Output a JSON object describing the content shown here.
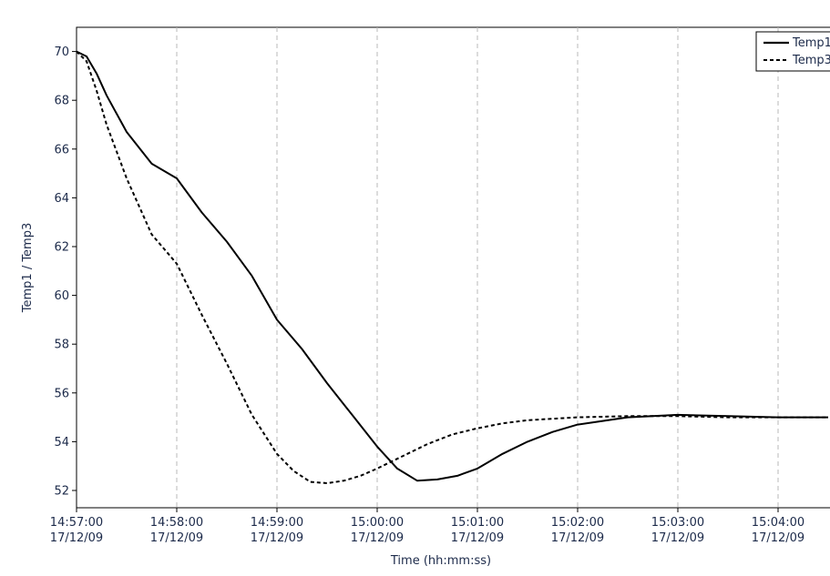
{
  "chart_data": {
    "type": "line",
    "xlabel": "Time (hh:mm:ss)",
    "ylabel": "Temp1 / Temp3",
    "ylim": [
      51.5,
      71
    ],
    "xlim_minutes": [
      0,
      7.5
    ],
    "y_ticks": [
      52,
      54,
      56,
      58,
      60,
      62,
      64,
      66,
      68,
      70
    ],
    "x_ticks": [
      {
        "time": "14:57:00",
        "date": "17/12/09"
      },
      {
        "time": "14:58:00",
        "date": "17/12/09"
      },
      {
        "time": "14:59:00",
        "date": "17/12/09"
      },
      {
        "time": "15:00:00",
        "date": "17/12/09"
      },
      {
        "time": "15:01:00",
        "date": "17/12/09"
      },
      {
        "time": "15:02:00",
        "date": "17/12/09"
      },
      {
        "time": "15:03:00",
        "date": "17/12/09"
      },
      {
        "time": "15:04:00",
        "date": "17/12/09"
      }
    ],
    "grid": "vertical dashed",
    "legend_position": "top-right",
    "series": [
      {
        "name": "Temp1",
        "style": "solid",
        "color": "#000000",
        "points": [
          {
            "x": "14:57:00",
            "y": 70.0
          },
          {
            "x": "14:57:06",
            "y": 69.8
          },
          {
            "x": "14:57:12",
            "y": 69.1
          },
          {
            "x": "14:57:18",
            "y": 68.2
          },
          {
            "x": "14:57:30",
            "y": 66.7
          },
          {
            "x": "14:57:45",
            "y": 65.4
          },
          {
            "x": "14:58:00",
            "y": 64.8
          },
          {
            "x": "14:58:15",
            "y": 63.4
          },
          {
            "x": "14:58:30",
            "y": 62.2
          },
          {
            "x": "14:58:45",
            "y": 60.8
          },
          {
            "x": "14:59:00",
            "y": 59.0
          },
          {
            "x": "14:59:15",
            "y": 57.8
          },
          {
            "x": "14:59:30",
            "y": 56.4
          },
          {
            "x": "14:59:45",
            "y": 55.1
          },
          {
            "x": "15:00:00",
            "y": 53.8
          },
          {
            "x": "15:00:12",
            "y": 52.9
          },
          {
            "x": "15:00:24",
            "y": 52.4
          },
          {
            "x": "15:00:36",
            "y": 52.45
          },
          {
            "x": "15:00:48",
            "y": 52.6
          },
          {
            "x": "15:01:00",
            "y": 52.9
          },
          {
            "x": "15:01:15",
            "y": 53.5
          },
          {
            "x": "15:01:30",
            "y": 54.0
          },
          {
            "x": "15:01:45",
            "y": 54.4
          },
          {
            "x": "15:02:00",
            "y": 54.7
          },
          {
            "x": "15:02:15",
            "y": 54.85
          },
          {
            "x": "15:02:30",
            "y": 55.0
          },
          {
            "x": "15:03:00",
            "y": 55.1
          },
          {
            "x": "15:03:30",
            "y": 55.05
          },
          {
            "x": "15:04:00",
            "y": 55.0
          },
          {
            "x": "15:04:30",
            "y": 55.0
          }
        ]
      },
      {
        "name": "Temp3",
        "style": "dashed",
        "color": "#000000",
        "points": [
          {
            "x": "14:57:00",
            "y": 70.0
          },
          {
            "x": "14:57:06",
            "y": 69.6
          },
          {
            "x": "14:57:12",
            "y": 68.4
          },
          {
            "x": "14:57:18",
            "y": 67.0
          },
          {
            "x": "14:57:30",
            "y": 64.8
          },
          {
            "x": "14:57:45",
            "y": 62.5
          },
          {
            "x": "14:58:00",
            "y": 61.3
          },
          {
            "x": "14:58:15",
            "y": 59.2
          },
          {
            "x": "14:58:30",
            "y": 57.2
          },
          {
            "x": "14:58:45",
            "y": 55.1
          },
          {
            "x": "14:59:00",
            "y": 53.5
          },
          {
            "x": "14:59:10",
            "y": 52.8
          },
          {
            "x": "14:59:20",
            "y": 52.35
          },
          {
            "x": "14:59:30",
            "y": 52.3
          },
          {
            "x": "14:59:40",
            "y": 52.4
          },
          {
            "x": "14:59:50",
            "y": 52.6
          },
          {
            "x": "15:00:00",
            "y": 52.9
          },
          {
            "x": "15:00:15",
            "y": 53.4
          },
          {
            "x": "15:00:30",
            "y": 53.9
          },
          {
            "x": "15:00:45",
            "y": 54.3
          },
          {
            "x": "15:01:00",
            "y": 54.55
          },
          {
            "x": "15:01:15",
            "y": 54.75
          },
          {
            "x": "15:01:30",
            "y": 54.88
          },
          {
            "x": "15:02:00",
            "y": 55.0
          },
          {
            "x": "15:02:30",
            "y": 55.05
          },
          {
            "x": "15:03:00",
            "y": 55.05
          },
          {
            "x": "15:03:30",
            "y": 55.0
          },
          {
            "x": "15:04:00",
            "y": 55.0
          },
          {
            "x": "15:04:30",
            "y": 55.0
          }
        ]
      }
    ]
  }
}
